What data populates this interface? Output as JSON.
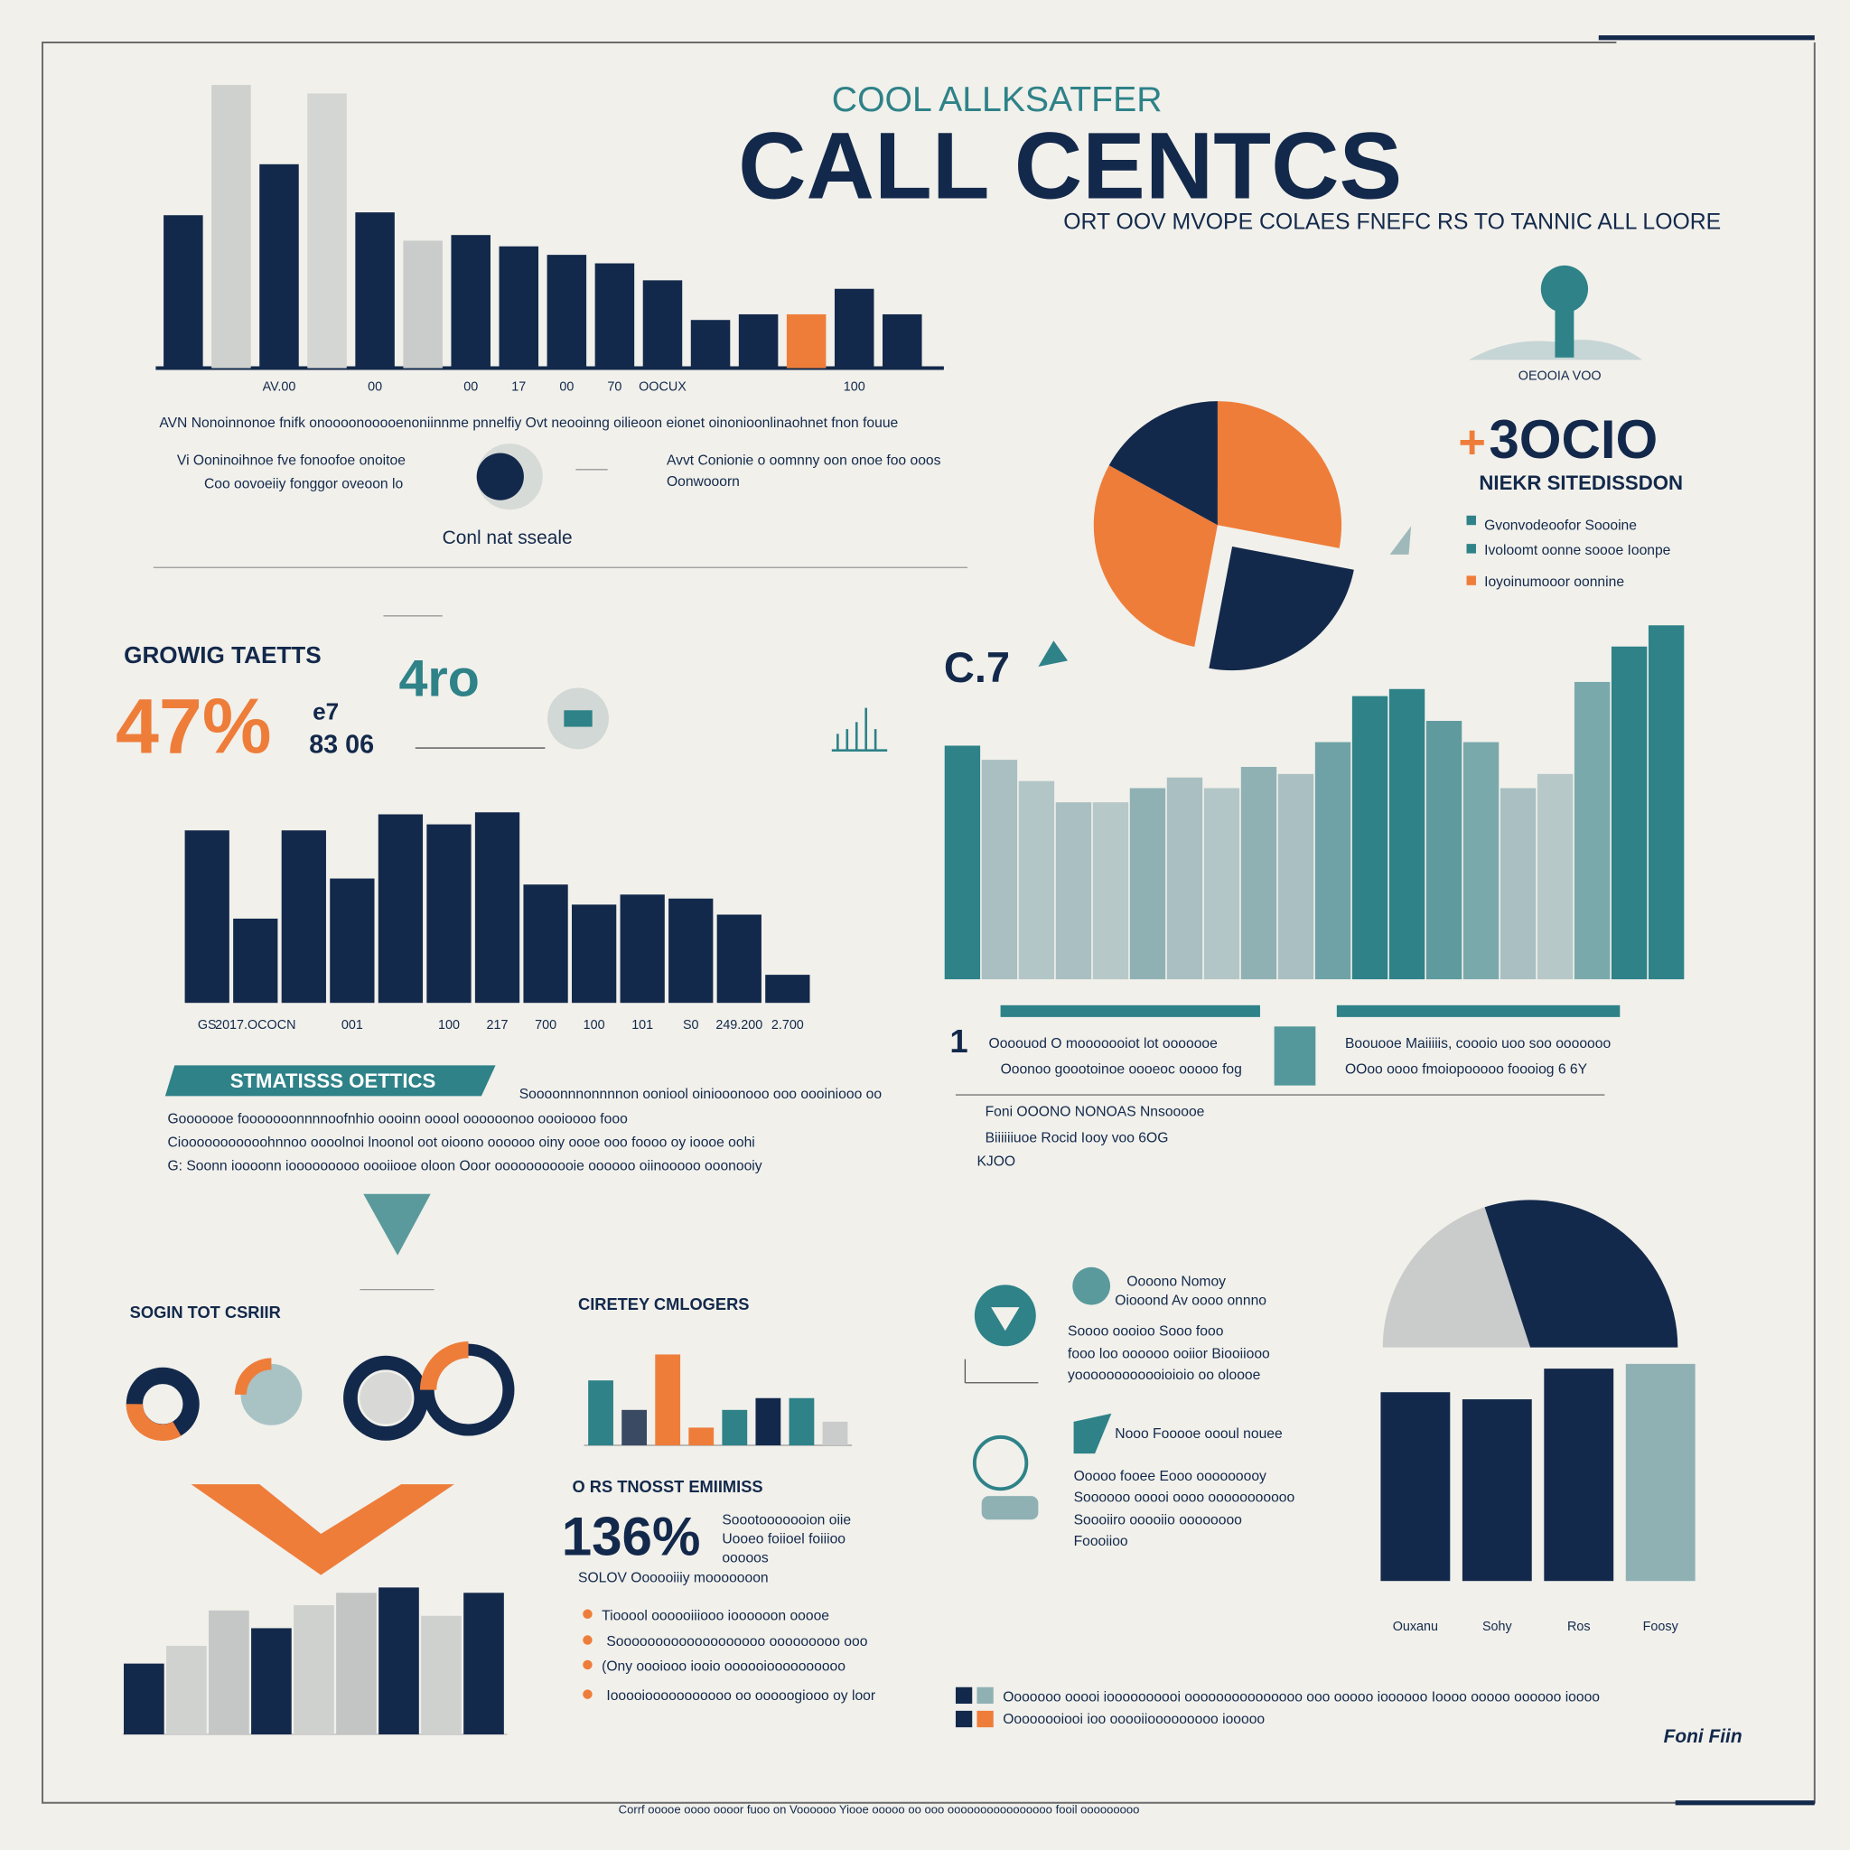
{
  "header": {
    "kicker": "COOL ALLKSATFER",
    "title": "CALL CENTCS",
    "subtitle": "ORT OOV MVOPE COLAES FNEFC RS TO TANNIC ALL LOORE"
  },
  "top_left": {
    "paragraph": "AVN Nonoinnonoe fnifk onoooonooooenoniinnme pnnelfiy Ovt neooinng oilieoon eionet oinonioonlinaohnet fnon fouue",
    "items": [
      "Vi Ooninoihnoe fve fonoofoe onoitoe",
      "Coo oovoeiiy fonggor oveoon lo",
      "Avvt Conionie o oomnny oon onoe foo ooos",
      "Oonwooorn"
    ],
    "caption": "Conl nat sseale"
  },
  "top_right": {
    "icon_caption": "OEOOIA VOO",
    "stat_sign": "+",
    "stat": "3OCIO",
    "stat_label": "NIEKR SITEDISSDON",
    "items": [
      "Gvonvodeoofor Soooine",
      "Ivoloomt oonne soooe Ioonpe",
      "Ioyoinumooor oonnine"
    ]
  },
  "growth": {
    "heading": "GROWIG TAETTS",
    "percent": "47%",
    "side_a": "e7",
    "side_b": "83 06",
    "teal_stat": "4ro"
  },
  "mid_right": {
    "stat": "C.7",
    "left_lines": [
      "Oooouod O mooooooiot lot ooooooe",
      "Ooonoo goootoinoe oooeoc ooooo fog"
    ],
    "right_lines": [
      "Boouooe Maiiiiis, coooio uoo soo ooooooo",
      "OOoo oooo fmoiopooooo foooiog 6 6Y"
    ],
    "items": [
      "Foni OOONO NONOAS Nnsooooe",
      "Biiiiiiuoe Rocid Iooy voo 6OG",
      "KJOO"
    ]
  },
  "statistics": {
    "banner": "STMATISSS OETTICS",
    "lines": [
      "Soooonnnonnnnon ooniool oiniooonooo ooo oooiniooo oo",
      "Gooooooe fooooooonnnnoofnhio oooinn ooool oooooonoo oooioooo fooo",
      "Ciooooooooooohnnoo oooolnoi lnoonol oot oioono oooooo oiny oooe ooo foooo oy ioooe oohi",
      "G: Soonn ioooonn iooooooooo oooiiooe oloon Ooor ooooooooooie oooooo oiinooooo ooonooiy"
    ]
  },
  "bottom_left": {
    "heading": "SOGIN TOT CSRIIR"
  },
  "bottom_mid": {
    "heading": "CIRETEY CMLOGERS",
    "subheading": "O RS TNOSST EMIIMISS",
    "stat": "136%",
    "stat_lines": [
      "Soootooooooion oiie",
      "Uooeo foiioel foiiioo",
      "ooooos"
    ],
    "stat_caption": "SOLOV Oooooiiiy mooooooon",
    "items": [
      "Tiooool oooooiiiooo ioooooon ooooe",
      "Sooooooooooooooooooo ooooooooo ooo",
      "(Ony oooiooo iooio oooooioooooooooo",
      "Iooooiooooooooooo oo ooooogiooo oy loor"
    ]
  },
  "bottom_right": {
    "head_a": "Oooono Nomoy",
    "head_b": "Oiooond Av oooo onnno",
    "lines_a": [
      "Soooo oooioo Sooo fooo",
      "fooo loo oooooo ooiior Biooiiooo",
      "yoooooooooooioioio oo oloooe"
    ],
    "head_c": "Nooo Fooooe oooul nouee",
    "lines_c": [
      "Ooooo fooee Eooo ooooooooy",
      "Soooooo ooooi oooo ooooooooooo",
      "Soooiiro ooooiio oooooooo",
      "Foooiioo"
    ]
  },
  "legend": [
    "Ooooooo ooooi ioooooooooi ooooooooooooooo ooo ooooo ioooooo Ioooo ooooo oooooo ioooo",
    "Oooooooiooi ioo ooooiiooooooooo iooooo"
  ],
  "brand": "Foni Fiin",
  "footer": "Corrf ooooe oooo oooor fuoo on Voooooo Yiooe ooooo oo ooo oooooooooooooooo fooil ooooooooo",
  "chart_data": [
    {
      "type": "bar",
      "categories": [
        null,
        null,
        "AV.00",
        null,
        "00",
        null,
        "00",
        "17",
        "00",
        "70",
        "OOCUX",
        null,
        null,
        null,
        "100",
        null
      ],
      "values": [
        54,
        100,
        72,
        97,
        55,
        45,
        47,
        43,
        40,
        37,
        31,
        17,
        19,
        19,
        28,
        19
      ],
      "colors": [
        "#13294b",
        "#cfd1cf",
        "#13294b",
        "#d4d6d3",
        "#13294b",
        "#c9ccca",
        "#13294b",
        "#13294b",
        "#13294b",
        "#13294b",
        "#13294b",
        "#13294b",
        "#13294b",
        "#ee7d3a",
        "#13294b",
        "#13294b"
      ]
    },
    {
      "type": "pie",
      "values": [
        28,
        25,
        30,
        17
      ],
      "colors": [
        "#ee7d3a",
        "#13294b",
        "#ee7d3a",
        "#13294b"
      ],
      "exploded": 1
    },
    {
      "type": "bar",
      "categories": [
        "GS",
        "2017.OCOCN",
        null,
        "001",
        null,
        "100",
        "217",
        "700",
        "100",
        "101",
        "S0",
        "249.200",
        "2.700"
      ],
      "values": [
        86,
        42,
        86,
        62,
        94,
        89,
        95,
        59,
        49,
        54,
        52,
        44,
        14
      ],
      "color": "#13294b"
    },
    {
      "type": "bar",
      "values": [
        66,
        62,
        56,
        50,
        50,
        54,
        57,
        54,
        60,
        58,
        67,
        80,
        82,
        73,
        67,
        54,
        58,
        84,
        94,
        100
      ],
      "colors": [
        "#2e8288",
        "#a9bfc1",
        "#b3c6c7",
        "#a9bfc1",
        "#b7c8c9",
        "#8fb1b4",
        "#a9bfc1",
        "#b3c6c7",
        "#8fb1b4",
        "#a9bfc1",
        "#6fa2a6",
        "#2e8288",
        "#2e8288",
        "#5f9a9e",
        "#7aa9ac",
        "#a9bfc1",
        "#b7c8c9",
        "#7aa9ac",
        "#2e8288",
        "#2e8288"
      ]
    },
    {
      "type": "pie",
      "arc": "half",
      "values": [
        40,
        60
      ],
      "colors": [
        "#c9ccca",
        "#13294b"
      ]
    },
    {
      "type": "bar",
      "categories": [
        "Ouxanu",
        "Sohy",
        "Ros",
        "Foosy"
      ],
      "values": [
        80,
        77,
        90,
        92
      ],
      "colors": [
        "#13294b",
        "#13294b",
        "#13294b",
        "#8fb1b4"
      ]
    },
    {
      "type": "bar",
      "values": [
        40,
        50,
        70,
        60,
        73,
        80,
        83,
        67,
        80
      ],
      "colors": [
        "#13294b",
        "#d0d2cf",
        "#c4c7c5",
        "#13294b",
        "#cfd1cf",
        "#c2c5c3",
        "#13294b",
        "#cfd1cf",
        "#13294b"
      ]
    },
    {
      "type": "bar",
      "values": [
        55,
        30,
        77,
        15,
        30,
        40,
        40,
        20
      ],
      "colors": [
        "#2e8288",
        "#3b4a63",
        "#ee7d3a",
        "#ee7d3a",
        "#2e8288",
        "#13294b",
        "#2e8288",
        "#c9ccca"
      ]
    }
  ]
}
